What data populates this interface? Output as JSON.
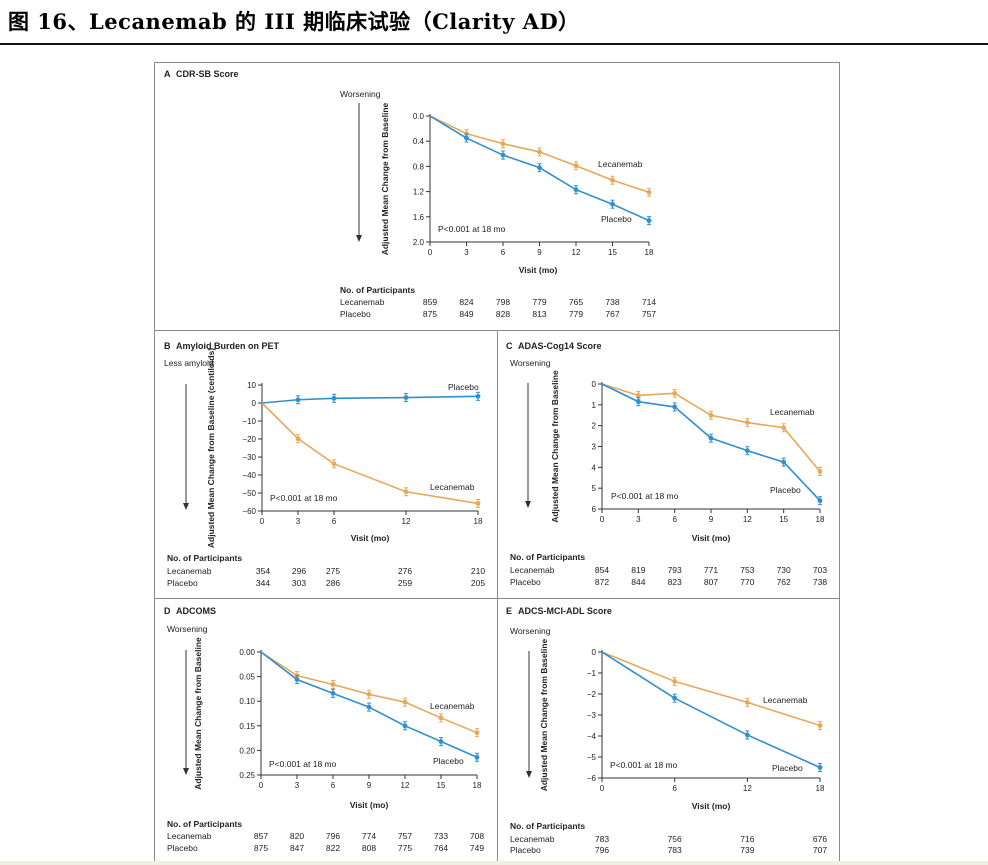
{
  "header": {
    "title": "图 16、Lecanemab 的 III 期临床试验（Clarity AD）"
  },
  "colors": {
    "lecanemab": "#e9a857",
    "placebo": "#2f8fcf",
    "axis": "#333333"
  },
  "chart_data": [
    {
      "id": "A",
      "type": "line",
      "title": "CDR-SB Score",
      "panel_label": "A",
      "direction_label": "Worsening",
      "xlabel": "Visit (mo)",
      "ylabel": "Adjusted Mean Change from Baseline",
      "ylim": [
        0,
        2.0
      ],
      "y_inverted": true,
      "y_ticks": [
        0,
        0.4,
        0.8,
        1.2,
        1.6,
        2.0
      ],
      "y_tick_labels": [
        "0.0",
        "0.4",
        "0.8",
        "1.2",
        "1.6",
        "2.0"
      ],
      "x_ticks": [
        0,
        3,
        6,
        9,
        12,
        15,
        18
      ],
      "series": [
        {
          "name": "Lecanemab",
          "x": [
            0,
            3,
            6,
            9,
            12,
            15,
            18
          ],
          "values": [
            0,
            0.28,
            0.44,
            0.57,
            0.79,
            1.02,
            1.21
          ]
        },
        {
          "name": "Placebo",
          "x": [
            0,
            3,
            6,
            9,
            12,
            15,
            18
          ],
          "values": [
            0,
            0.35,
            0.62,
            0.82,
            1.17,
            1.4,
            1.66
          ]
        }
      ],
      "annotation": "P<0.001 at 18 mo",
      "participants": {
        "header": "No. of Participants",
        "visits": [
          0,
          3,
          6,
          9,
          12,
          15,
          18
        ],
        "rows": [
          {
            "name": "Lecanemab",
            "counts": [
              "859",
              "824",
              "798",
              "779",
              "765",
              "738",
              "714"
            ]
          },
          {
            "name": "Placebo",
            "counts": [
              "875",
              "849",
              "828",
              "813",
              "779",
              "767",
              "757"
            ]
          }
        ]
      }
    },
    {
      "id": "B",
      "type": "line",
      "title": "Amyloid Burden on PET",
      "panel_label": "B",
      "direction_label": "Less amyloid",
      "xlabel": "Visit (mo)",
      "ylabel": "Adjusted Mean Change from Baseline (centiloids)",
      "ylim": [
        -60,
        10
      ],
      "y_inverted": false,
      "y_ticks": [
        10,
        0,
        -10,
        -20,
        -30,
        -40,
        -50,
        -60
      ],
      "y_tick_labels": [
        "10",
        "0",
        "−10",
        "−20",
        "−30",
        "−40",
        "−50",
        "−60"
      ],
      "x_ticks": [
        0,
        3,
        6,
        12,
        18
      ],
      "series": [
        {
          "name": "Placebo",
          "x": [
            0,
            3,
            6,
            12,
            18
          ],
          "values": [
            0,
            1.8,
            2.6,
            3.0,
            3.7
          ]
        },
        {
          "name": "Lecanemab",
          "x": [
            0,
            3,
            6,
            12,
            18
          ],
          "values": [
            0,
            -19.8,
            -33.8,
            -49.3,
            -55.8
          ]
        }
      ],
      "annotation": "P<0.001 at 18 mo",
      "participants": {
        "header": "No. of Participants",
        "visits": [
          0,
          3,
          6,
          12,
          18
        ],
        "rows": [
          {
            "name": "Lecanemab",
            "counts": [
              "354",
              "296",
              "275",
              "276",
              "210"
            ]
          },
          {
            "name": "Placebo",
            "counts": [
              "344",
              "303",
              "286",
              "259",
              "205"
            ]
          }
        ]
      }
    },
    {
      "id": "C",
      "type": "line",
      "title": "ADAS-Cog14 Score",
      "panel_label": "C",
      "direction_label": "Worsening",
      "xlabel": "Visit (mo)",
      "ylabel": "Adjusted Mean Change from Baseline",
      "ylim": [
        0,
        6
      ],
      "y_inverted": true,
      "y_ticks": [
        0,
        1,
        2,
        3,
        4,
        5,
        6
      ],
      "y_tick_labels": [
        "0",
        "1",
        "2",
        "3",
        "4",
        "5",
        "6"
      ],
      "x_ticks": [
        0,
        3,
        6,
        9,
        12,
        15,
        18
      ],
      "series": [
        {
          "name": "Lecanemab",
          "x": [
            0,
            3,
            6,
            9,
            12,
            15,
            18
          ],
          "values": [
            0,
            0.55,
            0.45,
            1.5,
            1.85,
            2.1,
            4.2
          ]
        },
        {
          "name": "Placebo",
          "x": [
            0,
            3,
            6,
            9,
            12,
            15,
            18
          ],
          "values": [
            0,
            0.85,
            1.1,
            2.6,
            3.2,
            3.75,
            5.6
          ]
        }
      ],
      "annotation": "P<0.001 at 18 mo",
      "participants": {
        "header": "No. of Participants",
        "visits": [
          0,
          3,
          6,
          9,
          12,
          15,
          18
        ],
        "rows": [
          {
            "name": "Lecanemab",
            "counts": [
              "854",
              "819",
              "793",
              "771",
              "753",
              "730",
              "703"
            ]
          },
          {
            "name": "Placebo",
            "counts": [
              "872",
              "844",
              "823",
              "807",
              "770",
              "762",
              "738"
            ]
          }
        ]
      }
    },
    {
      "id": "D",
      "type": "line",
      "title": "ADCOMS",
      "panel_label": "D",
      "direction_label": "Worsening",
      "xlabel": "Visit (mo)",
      "ylabel": "Adjusted Mean Change from Baseline",
      "ylim": [
        0,
        0.25
      ],
      "y_inverted": true,
      "y_ticks": [
        0,
        0.05,
        0.1,
        0.15,
        0.2,
        0.25
      ],
      "y_tick_labels": [
        "0.00",
        "0.05",
        "0.10",
        "0.15",
        "0.20",
        "0.25"
      ],
      "x_ticks": [
        0,
        3,
        6,
        9,
        12,
        15,
        18
      ],
      "series": [
        {
          "name": "Lecanemab",
          "x": [
            0,
            3,
            6,
            9,
            12,
            15,
            18
          ],
          "values": [
            0,
            0.048,
            0.066,
            0.086,
            0.102,
            0.134,
            0.164
          ]
        },
        {
          "name": "Placebo",
          "x": [
            0,
            3,
            6,
            9,
            12,
            15,
            18
          ],
          "values": [
            0,
            0.056,
            0.084,
            0.112,
            0.15,
            0.182,
            0.214
          ]
        }
      ],
      "annotation": "P<0.001 at 18 mo",
      "participants": {
        "header": "No. of Participants",
        "visits": [
          0,
          3,
          6,
          9,
          12,
          15,
          18
        ],
        "rows": [
          {
            "name": "Lecanemab",
            "counts": [
              "857",
              "820",
              "796",
              "774",
              "757",
              "733",
              "708"
            ]
          },
          {
            "name": "Placebo",
            "counts": [
              "875",
              "847",
              "822",
              "808",
              "775",
              "764",
              "749"
            ]
          }
        ]
      }
    },
    {
      "id": "E",
      "type": "line",
      "title": "ADCS-MCI-ADL Score",
      "panel_label": "E",
      "direction_label": "Worsening",
      "xlabel": "Visit (mo)",
      "ylabel": "Adjusted Mean Change from Baseline",
      "ylim": [
        -6,
        0
      ],
      "y_inverted": false,
      "y_ticks": [
        0,
        -1,
        -2,
        -3,
        -4,
        -5,
        -6
      ],
      "y_tick_labels": [
        "0",
        "−1",
        "−2",
        "−3",
        "−4",
        "−5",
        "−6"
      ],
      "x_ticks": [
        0,
        6,
        12,
        18
      ],
      "series": [
        {
          "name": "Lecanemab",
          "x": [
            0,
            6,
            12,
            18
          ],
          "values": [
            0,
            -1.4,
            -2.4,
            -3.5
          ]
        },
        {
          "name": "Placebo",
          "x": [
            0,
            6,
            12,
            18
          ],
          "values": [
            0,
            -2.2,
            -3.95,
            -5.5
          ]
        }
      ],
      "annotation": "P<0.001 at 18 mo",
      "participants": {
        "header": "No. of Participants",
        "visits": [
          0,
          6,
          12,
          18
        ],
        "rows": [
          {
            "name": "Lecanemab",
            "counts": [
              "783",
              "756",
              "716",
              "676"
            ]
          },
          {
            "name": "Placebo",
            "counts": [
              "796",
              "783",
              "739",
              "707"
            ]
          }
        ]
      }
    }
  ]
}
